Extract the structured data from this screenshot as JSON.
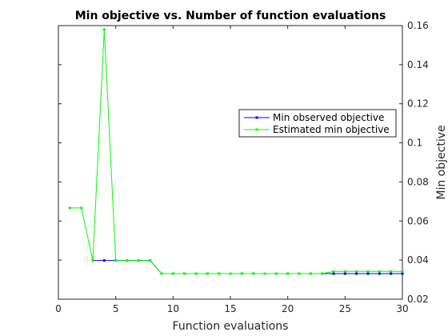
{
  "chart_data": {
    "type": "line",
    "title": "Min objective vs. Number of function evaluations",
    "xlabel": "Function evaluations",
    "ylabel": "Min objective",
    "xlim": [
      0,
      30
    ],
    "ylim": [
      0.02,
      0.16
    ],
    "x_ticks": [
      0,
      5,
      10,
      15,
      20,
      25,
      30
    ],
    "y_ticks": [
      0.02,
      0.04,
      0.06,
      0.08,
      0.1,
      0.12,
      0.14,
      0.16
    ],
    "y_axis_side": "right",
    "grid": false,
    "legend_position": "top-right",
    "series": [
      {
        "name": "Min observed objective",
        "color": "#0000ff",
        "x": [
          3,
          4,
          5,
          6,
          7,
          8,
          9,
          10,
          11,
          12,
          13,
          14,
          15,
          16,
          17,
          18,
          19,
          20,
          21,
          22,
          23,
          24,
          25,
          26,
          27,
          28,
          29,
          30
        ],
        "values": [
          0.0398,
          0.0398,
          0.0398,
          0.0398,
          0.0398,
          0.0398,
          0.0331,
          0.0331,
          0.0331,
          0.0331,
          0.0331,
          0.0331,
          0.0331,
          0.0331,
          0.0331,
          0.0331,
          0.0331,
          0.0331,
          0.0331,
          0.0331,
          0.0331,
          0.0331,
          0.0331,
          0.0331,
          0.0331,
          0.0331,
          0.0331,
          0.0331
        ]
      },
      {
        "name": "Estimated min objective",
        "color": "#00ff00",
        "x": [
          1,
          2,
          3,
          4,
          5,
          6,
          7,
          8,
          9,
          10,
          11,
          12,
          13,
          14,
          15,
          16,
          17,
          18,
          19,
          20,
          21,
          22,
          23,
          24,
          25,
          26,
          27,
          28,
          29,
          30
        ],
        "values": [
          0.0667,
          0.0667,
          0.0398,
          0.158,
          0.0398,
          0.0398,
          0.0398,
          0.0398,
          0.0331,
          0.0331,
          0.0331,
          0.0331,
          0.0331,
          0.0331,
          0.0331,
          0.0331,
          0.0331,
          0.0331,
          0.0331,
          0.0331,
          0.0331,
          0.0331,
          0.0331,
          0.0342,
          0.0342,
          0.0342,
          0.0342,
          0.0342,
          0.0342,
          0.0342
        ]
      }
    ]
  }
}
